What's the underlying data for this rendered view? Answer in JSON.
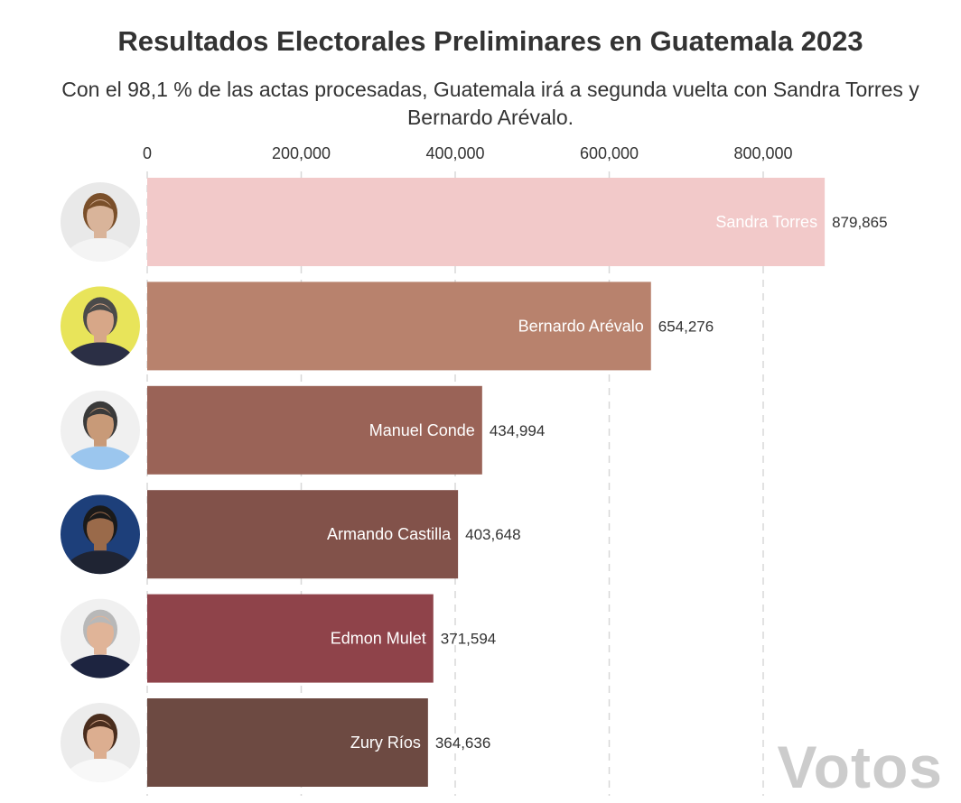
{
  "header": {
    "title": "Resultados Electorales Preliminares en Guatemala 2023",
    "subtitle": "Con el 98,1 % de las actas procesadas, Guatemala irá a segunda vuelta con Sandra Torres y Bernardo Arévalo."
  },
  "watermark": "Votos",
  "chart_data": {
    "type": "bar",
    "orientation": "horizontal",
    "title": "Resultados Electorales Preliminares en Guatemala 2023",
    "subtitle": "Con el 98,1 % de las actas procesadas, Guatemala irá a segunda vuelta con Sandra Torres y Bernardo Arévalo.",
    "xlabel": "",
    "ylabel": "",
    "xlim": [
      0,
      880000
    ],
    "x_ticks": [
      0,
      200000,
      400000,
      600000,
      800000
    ],
    "x_tick_labels": [
      "0",
      "200,000",
      "400,000",
      "600,000",
      "800,000"
    ],
    "grid": "vertical dashed",
    "categories": [
      "Sandra Torres",
      "Bernardo Arévalo",
      "Manuel Conde",
      "Armando Castilla",
      "Edmon Mulet",
      "Zury Ríos"
    ],
    "values": [
      879865,
      654276,
      434994,
      403648,
      371594,
      364636
    ],
    "value_labels": [
      "879,865",
      "654,276",
      "434,994",
      "403,648",
      "371,594",
      "364,636"
    ],
    "colors": [
      "#f2c9c9",
      "#b8826d",
      "#9a6357",
      "#82524a",
      "#8f434a",
      "#6d4a42"
    ],
    "avatars": [
      {
        "bg": "#e9e9e9",
        "face": "#d9b49a",
        "hair": "#7a4f2a",
        "shirt": "#f4f4f4"
      },
      {
        "bg": "#e8e45a",
        "face": "#d7a788",
        "hair": "#4a4a4a",
        "shirt": "#2b2f45"
      },
      {
        "bg": "#f0f0f0",
        "face": "#c89a78",
        "hair": "#3a3a3a",
        "shirt": "#9bc6ee"
      },
      {
        "bg": "#1d3f7a",
        "face": "#9a6a4a",
        "hair": "#1a1a1a",
        "shirt": "#1f2433"
      },
      {
        "bg": "#f0f0f0",
        "face": "#e0b498",
        "hair": "#b8b8b8",
        "shirt": "#1d2440"
      },
      {
        "bg": "#ececec",
        "face": "#dcae90",
        "hair": "#4a2d1d",
        "shirt": "#f8f8f8"
      }
    ]
  }
}
